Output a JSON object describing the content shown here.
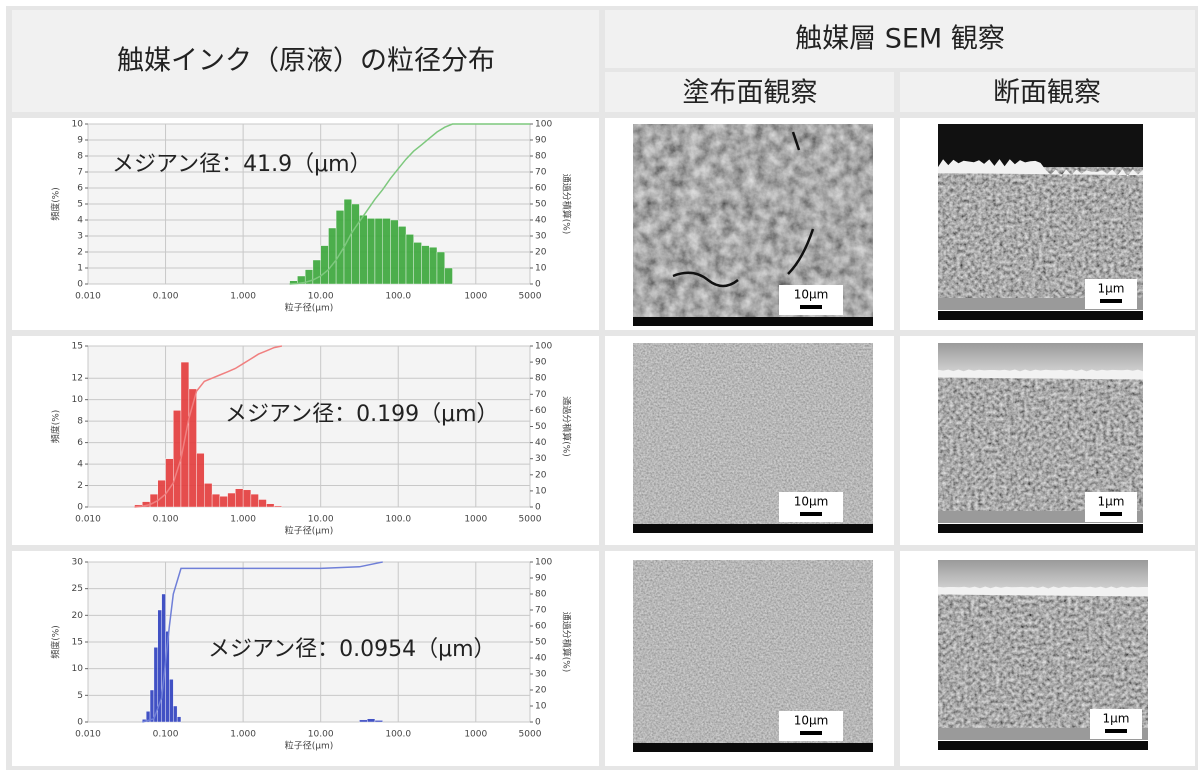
{
  "header": {
    "left": "触媒インク（原液）の粒径分布",
    "right": "触媒層 SEM 観察",
    "sub": [
      "塗布面観察",
      "断面観察"
    ]
  },
  "rows": [
    {
      "chart_data": {
        "type": "histogram",
        "annotation": "メジアン径：41.9（μm）",
        "xlabel": "粒子径(μm)",
        "ylabel": "頻度(%)",
        "y2label": "通過分積算(%)",
        "log_x": true,
        "grid": true,
        "bins": [
          3.98,
          5.01,
          6.31,
          7.94,
          10,
          12.6,
          15.8,
          20,
          25.1,
          31.6,
          39.8,
          50.1,
          63.1,
          79.4,
          100,
          126,
          158,
          200,
          251,
          316,
          398,
          501
        ],
        "values": [
          0.2,
          0.5,
          0.9,
          1.5,
          2.4,
          3.5,
          4.6,
          5.3,
          5.0,
          4.3,
          4.1,
          4.1,
          4.1,
          4.0,
          3.6,
          3.1,
          2.6,
          2.4,
          2.3,
          2.0,
          1.0
        ],
        "color": "#3aa63a",
        "cumulative": {
          "x": [
            3.98,
            5.01,
            6.31,
            7.94,
            10,
            12.6,
            15.8,
            20,
            25.1,
            31.6,
            39.8,
            50.1,
            63.1,
            79.4,
            100,
            126,
            158,
            200,
            251,
            316,
            398,
            501,
            5000
          ],
          "values": [
            0,
            0.3,
            1,
            2.5,
            5,
            9,
            15,
            23,
            32,
            39,
            46,
            53,
            59,
            66,
            72,
            78,
            83,
            87,
            91,
            95,
            98,
            100,
            100
          ],
          "color": "#7dc87d"
        },
        "xlim": [
          0.01,
          5000
        ],
        "xticks": [
          {
            "value": 0.01,
            "label": "0.010"
          },
          {
            "value": 0.1,
            "label": "0.100"
          },
          {
            "value": 1,
            "label": "1.000"
          },
          {
            "value": 10,
            "label": "10.00"
          },
          {
            "value": 100,
            "label": "100.0"
          },
          1000,
          5000
        ],
        "ylim": [
          0,
          10
        ],
        "yticks": [
          0,
          1,
          2,
          3,
          4,
          5,
          6,
          7,
          8,
          9,
          10
        ],
        "y2lim": [
          0,
          100
        ],
        "y2ticks": [
          0,
          10,
          20,
          30,
          40,
          50,
          60,
          70,
          80,
          90,
          100
        ]
      },
      "sem": [
        "10μm",
        "1μm"
      ]
    },
    {
      "chart_data": {
        "type": "histogram",
        "annotation": "メジアン径：0.199（μm）",
        "xlabel": "粒子径(μm)",
        "ylabel": "頻度(%)",
        "y2label": "通過分積算(%)",
        "log_x": true,
        "grid": true,
        "bins": [
          0.0398,
          0.0501,
          0.0631,
          0.0794,
          0.1,
          0.126,
          0.158,
          0.2,
          0.251,
          0.316,
          0.398,
          0.501,
          0.631,
          0.794,
          1,
          1.26,
          1.58,
          2,
          2.51,
          3.16
        ],
        "values": [
          0.2,
          0.5,
          1.2,
          2.5,
          4.5,
          9,
          13.5,
          11,
          5,
          2.2,
          1.2,
          1.0,
          1.3,
          1.7,
          1.6,
          1.2,
          0.7,
          0.3,
          0.1
        ],
        "color": "#e33b3b",
        "cumulative": {
          "x": [
            0.0398,
            0.0501,
            0.0631,
            0.0794,
            0.1,
            0.126,
            0.158,
            0.2,
            0.251,
            0.316,
            0.398,
            0.501,
            0.631,
            0.794,
            1,
            1.26,
            1.58,
            2,
            2.51,
            3.16
          ],
          "values": [
            0,
            0.5,
            1.5,
            4,
            8,
            15,
            30,
            55,
            72,
            78,
            80,
            82,
            84,
            86,
            89,
            92,
            95,
            97,
            99,
            100
          ],
          "color": "#f08080"
        },
        "xlim": [
          0.01,
          5000
        ],
        "xticks": [
          {
            "value": 0.01,
            "label": "0.010"
          },
          {
            "value": 0.1,
            "label": "0.100"
          },
          {
            "value": 1,
            "label": "1.000"
          },
          {
            "value": 10,
            "label": "10.00"
          },
          {
            "value": 100,
            "label": "100.0"
          },
          1000,
          5000
        ],
        "ylim": [
          0,
          15
        ],
        "yticks": [
          0,
          2,
          4,
          6,
          8,
          10,
          12,
          15
        ],
        "y2lim": [
          0,
          100
        ],
        "y2ticks": [
          0,
          10,
          20,
          30,
          40,
          50,
          60,
          70,
          80,
          90,
          100
        ]
      },
      "sem": [
        "10μm",
        "1μm"
      ]
    },
    {
      "chart_data": {
        "type": "histogram",
        "annotation": "メジアン径：0.0954（μm）",
        "xlabel": "粒子径(μm)",
        "ylabel": "頻度(%)",
        "y2label": "通過分積算(%)",
        "log_x": true,
        "grid": true,
        "bins": [
          0.0501,
          0.0562,
          0.0631,
          0.0708,
          0.0794,
          0.0891,
          0.1,
          0.112,
          0.126,
          0.141,
          0.158,
          31.6,
          39.8,
          50.1,
          63.1
        ],
        "values": [
          0.5,
          2,
          6,
          14,
          21,
          24,
          17,
          8,
          3,
          1,
          0,
          0.4,
          0.6,
          0.3
        ],
        "color": "#2d3fbf",
        "cumulative": {
          "x": [
            0.0501,
            0.0708,
            0.0891,
            0.112,
            0.126,
            0.158,
            1,
            10,
            31.6,
            63.1
          ],
          "values": [
            0,
            2,
            15,
            60,
            80,
            96,
            96,
            96,
            97,
            100
          ],
          "color": "#6f7fd8"
        },
        "xlim": [
          0.01,
          5000
        ],
        "xticks": [
          {
            "value": 0.01,
            "label": "0.010"
          },
          {
            "value": 0.1,
            "label": "0.100"
          },
          {
            "value": 1,
            "label": "1.000"
          },
          {
            "value": 10,
            "label": "10.00"
          },
          {
            "value": 100,
            "label": "100.0"
          },
          1000,
          5000
        ],
        "ylim": [
          0,
          30
        ],
        "yticks": [
          0,
          5,
          10,
          15,
          20,
          25,
          30
        ],
        "y2lim": [
          0,
          100
        ],
        "y2ticks": [
          0,
          10,
          20,
          30,
          40,
          50,
          60,
          70,
          80,
          90,
          100
        ]
      },
      "sem": [
        "10μm",
        "1μm"
      ]
    }
  ]
}
